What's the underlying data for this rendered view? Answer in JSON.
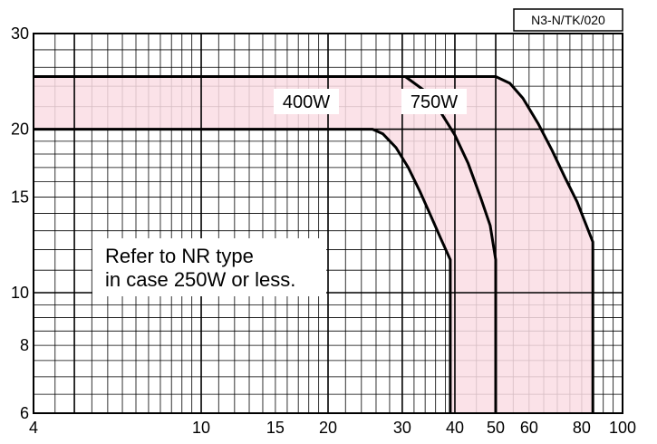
{
  "chart_data": {
    "type": "line",
    "title": "",
    "xlabel": "",
    "ylabel": "",
    "xscale": "log",
    "yscale": "log",
    "xlim": [
      4,
      100
    ],
    "ylim": [
      6,
      30
    ],
    "grid": true,
    "x_ticks": [
      {
        "value": 4,
        "label": "4"
      },
      {
        "value": 10,
        "label": "10"
      },
      {
        "value": 15,
        "label": "15"
      },
      {
        "value": 20,
        "label": "20"
      },
      {
        "value": 30,
        "label": "30"
      },
      {
        "value": 40,
        "label": "40"
      },
      {
        "value": 50,
        "label": "50"
      },
      {
        "value": 60,
        "label": "60"
      },
      {
        "value": 80,
        "label": "80"
      },
      {
        "value": 100,
        "label": "100"
      }
    ],
    "y_ticks": [
      {
        "value": 6,
        "label": "6"
      },
      {
        "value": 8,
        "label": "8"
      },
      {
        "value": 10,
        "label": "10"
      },
      {
        "value": 15,
        "label": "15"
      },
      {
        "value": 20,
        "label": "20"
      },
      {
        "value": 30,
        "label": "30"
      }
    ],
    "fill_color": "#fadde4",
    "line_color": "#000000",
    "series": [
      {
        "name": "400W",
        "x": [
          4,
          25.5,
          27,
          29,
          31,
          33,
          35,
          37,
          39,
          39,
          39
        ],
        "y": [
          20,
          20,
          19.6,
          18.5,
          17.0,
          15.4,
          13.9,
          12.6,
          11.5,
          11.5,
          6
        ]
      },
      {
        "name": "750W",
        "x": [
          4,
          30.5,
          34,
          37,
          40,
          43,
          46,
          48.5,
          50,
          50
        ],
        "y": [
          25,
          25,
          23.5,
          21.5,
          19.5,
          17.3,
          15.0,
          13.3,
          11.5,
          6
        ]
      },
      {
        "name": "",
        "x": [
          30.5,
          50,
          54,
          58,
          63,
          68,
          73,
          78,
          85,
          85
        ],
        "y": [
          25,
          25,
          24.3,
          22.8,
          20.5,
          18.3,
          16.3,
          14.7,
          12.4,
          6
        ]
      }
    ],
    "annotations": {
      "curve_labels": [
        "400W",
        "750W"
      ],
      "note_lines": [
        "Refer to NR type",
        "in case 250W or less."
      ],
      "code": "N3-N/TK/020"
    }
  }
}
